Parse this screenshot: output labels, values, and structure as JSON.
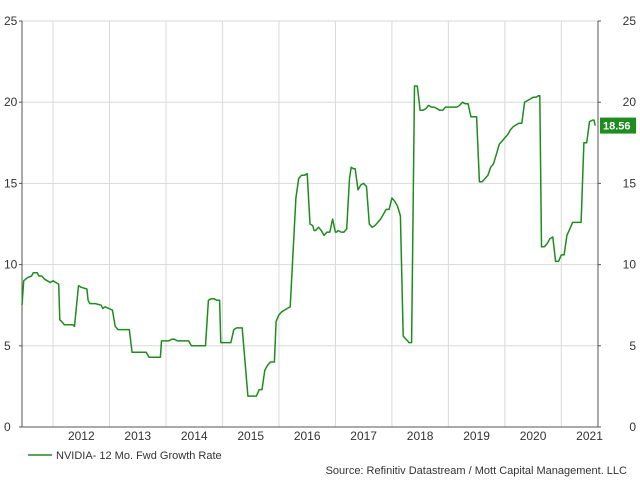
{
  "chart_data": {
    "type": "line",
    "title": "",
    "xlabel": "",
    "ylabel": "",
    "x_range": [
      2011.45,
      2021.65
    ],
    "ylim": [
      0,
      25
    ],
    "y_ticks": [
      0,
      5,
      10,
      15,
      20,
      25
    ],
    "y_tick_labels": [
      "0",
      "5",
      "10",
      "15",
      "20",
      "25"
    ],
    "x_ticks": [
      2012,
      2013,
      2014,
      2015,
      2016,
      2017,
      2018,
      2019,
      2020,
      2021
    ],
    "x_tick_labels": [
      "2012",
      "2013",
      "2014",
      "2015",
      "2016",
      "2017",
      "2018",
      "2019",
      "2020",
      "2021"
    ],
    "grid": true,
    "legend_position": "bottom-left",
    "series": [
      {
        "name": "NVIDIA- 12 Mo. Fwd Growth Rate",
        "color": "#1e8c1e",
        "last_value_label": "18.56",
        "x": [
          2011.45,
          2011.48,
          2011.55,
          2011.62,
          2011.65,
          2011.72,
          2011.75,
          2011.8,
          2011.85,
          2011.9,
          2011.95,
          2012.0,
          2012.05,
          2012.1,
          2012.12,
          2012.15,
          2012.2,
          2012.25,
          2012.3,
          2012.35,
          2012.38,
          2012.45,
          2012.5,
          2012.6,
          2012.62,
          2012.65,
          2012.72,
          2012.75,
          2012.85,
          2012.88,
          2012.92,
          2013.05,
          2013.1,
          2013.15,
          2013.25,
          2013.3,
          2013.35,
          2013.4,
          2013.45,
          2013.5,
          2013.55,
          2013.6,
          2013.65,
          2013.7,
          2013.75,
          2013.8,
          2013.85,
          2013.9,
          2013.92,
          2014.0,
          2014.05,
          2014.1,
          2014.15,
          2014.2,
          2014.35,
          2014.4,
          2014.45,
          2014.5,
          2014.55,
          2014.6,
          2014.65,
          2014.7,
          2014.75,
          2014.8,
          2014.85,
          2014.9,
          2014.95,
          2014.97,
          2015.0,
          2015.05,
          2015.1,
          2015.15,
          2015.2,
          2015.25,
          2015.28,
          2015.32,
          2015.35,
          2015.45,
          2015.52,
          2015.6,
          2015.65,
          2015.7,
          2015.75,
          2015.8,
          2015.85,
          2015.9,
          2015.92,
          2015.95,
          2016.0,
          2016.05,
          2016.1,
          2016.15,
          2016.2,
          2016.3,
          2016.35,
          2016.4,
          2016.45,
          2016.5,
          2016.55,
          2016.6,
          2016.62,
          2016.65,
          2016.7,
          2016.75,
          2016.8,
          2016.85,
          2016.9,
          2016.95,
          2017.0,
          2017.02,
          2017.05,
          2017.1,
          2017.15,
          2017.2,
          2017.25,
          2017.28,
          2017.32,
          2017.35,
          2017.4,
          2017.45,
          2017.5,
          2017.55,
          2017.6,
          2017.65,
          2017.7,
          2017.75,
          2017.8,
          2017.85,
          2017.9,
          2017.95,
          2018.0,
          2018.05,
          2018.1,
          2018.15,
          2018.2,
          2018.25,
          2018.28,
          2018.3,
          2018.35,
          2018.4,
          2018.45,
          2018.5,
          2018.55,
          2018.6,
          2018.65,
          2018.7,
          2018.75,
          2018.8,
          2018.85,
          2018.9,
          2018.95,
          2019.0,
          2019.05,
          2019.1,
          2019.15,
          2019.2,
          2019.25,
          2019.3,
          2019.35,
          2019.4,
          2019.45,
          2019.5,
          2019.55,
          2019.6,
          2019.65,
          2019.7,
          2019.75,
          2019.8,
          2019.85,
          2019.9,
          2019.95,
          2020.0,
          2020.05,
          2020.1,
          2020.15,
          2020.2,
          2020.25,
          2020.3,
          2020.35,
          2020.4,
          2020.45,
          2020.5,
          2020.55,
          2020.6,
          2020.62,
          2020.65,
          2020.7,
          2020.75,
          2020.8,
          2020.85,
          2020.9,
          2020.95,
          2021.0,
          2021.05,
          2021.1,
          2021.15,
          2021.2,
          2021.25,
          2021.3,
          2021.35,
          2021.4,
          2021.45,
          2021.5,
          2021.55,
          2021.58,
          2021.6
        ],
        "y": [
          7.5,
          9.0,
          9.2,
          9.3,
          9.5,
          9.5,
          9.3,
          9.3,
          9.1,
          9.0,
          8.9,
          9.0,
          8.9,
          8.8,
          6.6,
          6.5,
          6.3,
          6.3,
          6.3,
          6.3,
          6.2,
          8.7,
          8.6,
          8.5,
          7.8,
          7.6,
          7.6,
          7.6,
          7.5,
          7.3,
          7.4,
          7.2,
          6.2,
          6.0,
          6.0,
          6.0,
          6.0,
          4.6,
          4.6,
          4.6,
          4.6,
          4.6,
          4.6,
          4.3,
          4.3,
          4.3,
          4.3,
          4.3,
          5.3,
          5.3,
          5.3,
          5.4,
          5.4,
          5.3,
          5.3,
          5.3,
          5.0,
          5.0,
          5.0,
          5.0,
          5.0,
          5.0,
          7.8,
          7.9,
          7.9,
          7.8,
          7.8,
          5.2,
          5.2,
          5.2,
          5.2,
          5.2,
          6.0,
          6.1,
          6.1,
          6.1,
          6.1,
          1.9,
          1.9,
          1.9,
          2.3,
          2.3,
          3.5,
          3.8,
          4.0,
          4.0,
          4.0,
          6.5,
          6.9,
          7.1,
          7.2,
          7.3,
          7.4,
          14.1,
          15.3,
          15.5,
          15.5,
          15.6,
          12.5,
          12.4,
          12.1,
          12.1,
          12.3,
          12.1,
          11.8,
          12.0,
          12.0,
          12.8,
          12.0,
          12.0,
          12.1,
          12.0,
          12.0,
          12.2,
          15.3,
          16.0,
          15.9,
          15.9,
          14.6,
          14.9,
          15.0,
          14.8,
          12.5,
          12.3,
          12.4,
          12.6,
          12.8,
          13.1,
          13.4,
          13.4,
          14.1,
          13.9,
          13.6,
          13.0,
          5.6,
          5.4,
          5.3,
          5.2,
          5.2,
          21.0,
          21.0,
          19.5,
          19.5,
          19.6,
          19.8,
          19.7,
          19.7,
          19.6,
          19.5,
          19.5,
          19.7,
          19.7,
          19.7,
          19.7,
          19.7,
          19.8,
          20.0,
          19.9,
          19.9,
          19.1,
          19.1,
          19.1,
          15.1,
          15.1,
          15.3,
          15.5,
          16.0,
          16.2,
          16.8,
          17.4,
          17.6,
          17.8,
          18.0,
          18.3,
          18.5,
          18.6,
          18.7,
          18.7,
          20.0,
          20.1,
          20.2,
          20.3,
          20.3,
          20.4,
          20.4,
          11.1,
          11.1,
          11.3,
          11.6,
          11.7,
          10.2,
          10.2,
          10.6,
          10.6,
          11.8,
          12.2,
          12.6,
          12.6,
          12.6,
          12.6,
          17.5,
          17.5,
          18.8,
          18.9,
          18.9,
          18.56
        ]
      }
    ],
    "source": "Source: Refinitiv Datastream / Mott Capital Management. LLC"
  }
}
